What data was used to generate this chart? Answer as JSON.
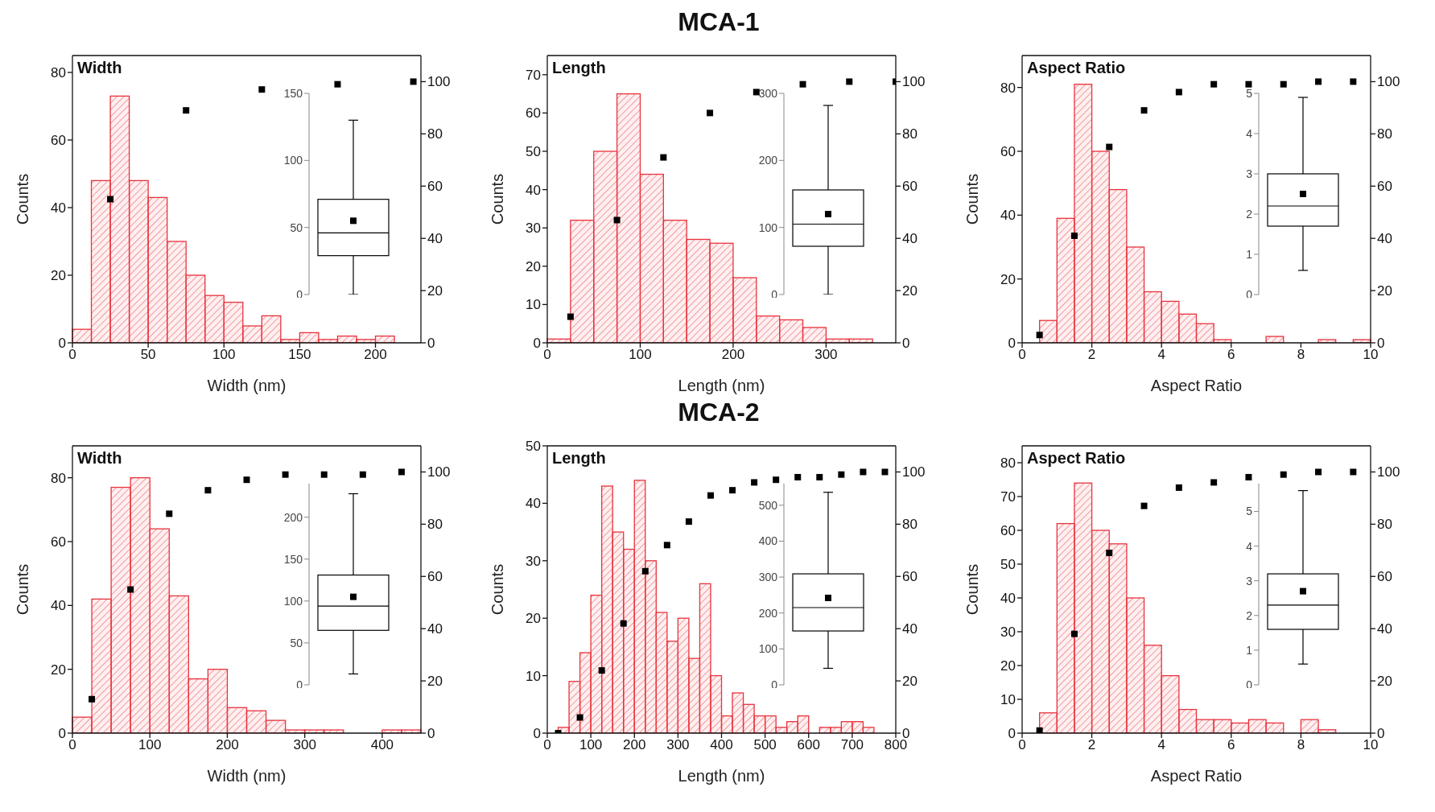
{
  "chart_data": [
    {
      "type": "histogram",
      "title": "Width",
      "xlabel": "Width (nm)",
      "ylabel": "Counts",
      "annotations": [
        "MCA-1"
      ],
      "xlim": [
        0,
        230
      ],
      "xticks": [
        0,
        50,
        100,
        150,
        200
      ],
      "ylim": [
        0,
        85
      ],
      "yticks": [
        0,
        20,
        40,
        60,
        80
      ],
      "y2lim": [
        0,
        110
      ],
      "y2ticks": [
        0,
        20,
        40,
        60,
        80,
        100
      ],
      "marker": "square",
      "series": [
        {
          "type": "histogram",
          "color": "#e8333c",
          "bins": [
            0,
            12.5,
            25,
            37.5,
            50,
            62.5,
            75,
            87.5,
            100,
            112.5,
            125,
            137.5,
            150,
            162.5,
            175,
            187.5,
            200,
            212.5
          ],
          "values": [
            4,
            48,
            73,
            48,
            43,
            30,
            20,
            14,
            12,
            5,
            8,
            1,
            3,
            1,
            2,
            1,
            2
          ]
        },
        {
          "type": "scatter",
          "axis": "y2",
          "color": "#000000",
          "x": [
            25,
            75,
            125,
            175,
            225
          ],
          "values": [
            55,
            89,
            97,
            99,
            100
          ]
        }
      ]
    },
    {
      "type": "box",
      "categories": [
        null
      ],
      "tick_labels": "y",
      "color": "#000000",
      "marker": "square",
      "ylim": [
        0,
        150
      ],
      "yticks": [
        0,
        50,
        100,
        150
      ],
      "boxes": [
        {
          "low": 0,
          "q1": 29,
          "median": 46,
          "q3": 71,
          "high": 130,
          "mean": 55
        }
      ]
    },
    {
      "type": "histogram",
      "title": "Length",
      "xlabel": "Length (nm)",
      "ylabel": "Counts",
      "xlim": [
        0,
        375
      ],
      "xticks": [
        0,
        100,
        200,
        300
      ],
      "ylim": [
        0,
        75
      ],
      "yticks": [
        0,
        10,
        20,
        30,
        40,
        50,
        60,
        70
      ],
      "y2lim": [
        0,
        110
      ],
      "y2ticks": [
        0,
        20,
        40,
        60,
        80,
        100
      ],
      "marker": "square",
      "series": [
        {
          "type": "histogram",
          "color": "#e8333c",
          "bins": [
            0,
            25,
            50,
            75,
            100,
            125,
            150,
            175,
            200,
            225,
            250,
            275,
            300,
            325,
            350
          ],
          "values": [
            1,
            32,
            50,
            65,
            44,
            32,
            27,
            26,
            17,
            7,
            6,
            4,
            1,
            1
          ]
        },
        {
          "type": "scatter",
          "axis": "y2",
          "color": "#000000",
          "x": [
            25,
            75,
            125,
            175,
            225,
            275,
            325,
            375
          ],
          "values": [
            10,
            47,
            71,
            88,
            96,
            99,
            100,
            100
          ]
        }
      ]
    },
    {
      "type": "box",
      "categories": [
        null
      ],
      "tick_labels": "y",
      "color": "#000000",
      "marker": "square",
      "ylim": [
        0,
        300
      ],
      "yticks": [
        0,
        100,
        200,
        300
      ],
      "boxes": [
        {
          "low": 0,
          "q1": 72,
          "median": 105,
          "q3": 156,
          "high": 282,
          "mean": 120
        }
      ]
    },
    {
      "type": "histogram",
      "title": "Aspect Ratio",
      "xlabel": "Aspect Ratio",
      "ylabel": "Counts",
      "xlim": [
        0,
        10
      ],
      "xticks": [
        0,
        2,
        4,
        6,
        8,
        10
      ],
      "ylim": [
        0,
        90
      ],
      "yticks": [
        0,
        20,
        40,
        60,
        80
      ],
      "y2lim": [
        0,
        110
      ],
      "y2ticks": [
        0,
        20,
        40,
        60,
        80,
        100
      ],
      "marker": "square",
      "series": [
        {
          "type": "histogram",
          "color": "#e8333c",
          "bins": [
            0.5,
            1,
            1.5,
            2,
            2.5,
            3,
            3.5,
            4,
            4.5,
            5,
            5.5,
            6,
            6.5,
            7,
            7.5,
            8,
            8.5,
            9,
            9.5,
            10
          ],
          "values": [
            7,
            39,
            81,
            60,
            48,
            30,
            16,
            13,
            9,
            6,
            1,
            0,
            0,
            2,
            0,
            0,
            1,
            0,
            1
          ]
        },
        {
          "type": "scatter",
          "axis": "y2",
          "color": "#000000",
          "x": [
            0.5,
            1.5,
            2.5,
            3.5,
            4.5,
            5.5,
            6.5,
            7.5,
            8.5,
            9.5
          ],
          "values": [
            3,
            41,
            75,
            89,
            96,
            99,
            99,
            99,
            100,
            100
          ]
        }
      ]
    },
    {
      "type": "box",
      "categories": [
        null
      ],
      "tick_labels": "y",
      "color": "#000000",
      "marker": "square",
      "ylim": [
        0,
        5
      ],
      "yticks": [
        0,
        1,
        2,
        3,
        4,
        5
      ],
      "boxes": [
        {
          "low": 0.6,
          "q1": 1.7,
          "median": 2.2,
          "q3": 3.0,
          "high": 4.9,
          "mean": 2.5
        }
      ]
    },
    {
      "type": "histogram",
      "title": "Width",
      "xlabel": "Width (nm)",
      "ylabel": "Counts",
      "annotations": [
        "MCA-2"
      ],
      "xlim": [
        0,
        450
      ],
      "xticks": [
        0,
        100,
        200,
        300,
        400
      ],
      "ylim": [
        0,
        90
      ],
      "yticks": [
        0,
        20,
        40,
        60,
        80
      ],
      "y2lim": [
        0,
        110
      ],
      "y2ticks": [
        0,
        20,
        40,
        60,
        80,
        100
      ],
      "marker": "square",
      "series": [
        {
          "type": "histogram",
          "color": "#e8333c",
          "bins": [
            0,
            25,
            50,
            75,
            100,
            125,
            150,
            175,
            200,
            225,
            250,
            275,
            300,
            325,
            350,
            375,
            400,
            425,
            450
          ],
          "values": [
            5,
            42,
            77,
            80,
            64,
            43,
            17,
            20,
            8,
            7,
            4,
            1,
            1,
            1,
            0,
            0,
            1,
            1
          ]
        },
        {
          "type": "scatter",
          "axis": "y2",
          "color": "#000000",
          "x": [
            25,
            75,
            125,
            175,
            225,
            275,
            325,
            375,
            425
          ],
          "values": [
            13,
            55,
            84,
            93,
            97,
            99,
            99,
            99,
            100
          ]
        }
      ]
    },
    {
      "type": "box",
      "categories": [
        null
      ],
      "tick_labels": "y",
      "color": "#000000",
      "marker": "square",
      "ylim": [
        0,
        240
      ],
      "yticks": [
        0,
        50,
        100,
        150,
        200
      ],
      "boxes": [
        {
          "low": 13,
          "q1": 65,
          "median": 94,
          "q3": 131,
          "high": 228,
          "mean": 105
        }
      ]
    },
    {
      "type": "histogram",
      "title": "Length",
      "xlabel": "Length (nm)",
      "ylabel": "Counts",
      "xlim": [
        0,
        800
      ],
      "xticks": [
        0,
        100,
        200,
        300,
        400,
        500,
        600,
        700,
        800
      ],
      "ylim": [
        0,
        50
      ],
      "yticks": [
        0,
        10,
        20,
        30,
        40,
        50
      ],
      "y2lim": [
        0,
        110
      ],
      "y2ticks": [
        0,
        20,
        40,
        60,
        80,
        100
      ],
      "marker": "square",
      "series": [
        {
          "type": "histogram",
          "color": "#e8333c",
          "bins": [
            25,
            50,
            75,
            100,
            125,
            150,
            175,
            200,
            225,
            250,
            275,
            300,
            325,
            350,
            375,
            400,
            425,
            450,
            475,
            500,
            525,
            550,
            575,
            600,
            625,
            650,
            675,
            700,
            725,
            750
          ],
          "values": [
            1,
            9,
            14,
            24,
            43,
            35,
            32,
            44,
            30,
            21,
            16,
            20,
            13,
            26,
            10,
            3,
            7,
            5,
            3,
            3,
            1,
            2,
            3,
            0,
            1,
            1,
            2,
            2,
            1
          ]
        },
        {
          "type": "scatter",
          "axis": "y2",
          "color": "#000000",
          "x": [
            25,
            75,
            125,
            175,
            225,
            275,
            325,
            375,
            425,
            475,
            525,
            575,
            625,
            675,
            725,
            775
          ],
          "values": [
            0,
            6,
            24,
            42,
            62,
            72,
            81,
            91,
            93,
            96,
            97,
            98,
            98,
            99,
            100,
            100
          ]
        }
      ]
    },
    {
      "type": "box",
      "categories": [
        null
      ],
      "tick_labels": "y",
      "color": "#000000",
      "marker": "square",
      "ylim": [
        0,
        560
      ],
      "yticks": [
        0,
        100,
        200,
        300,
        400,
        500
      ],
      "boxes": [
        {
          "low": 46,
          "q1": 150,
          "median": 215,
          "q3": 309,
          "high": 536,
          "mean": 242
        }
      ]
    },
    {
      "type": "histogram",
      "title": "Aspect Ratio",
      "xlabel": "Aspect Ratio",
      "ylabel": "Counts",
      "xlim": [
        0,
        10
      ],
      "xticks": [
        0,
        2,
        4,
        6,
        8,
        10
      ],
      "ylim": [
        0,
        85
      ],
      "yticks": [
        0,
        10,
        20,
        30,
        40,
        50,
        60,
        70,
        80
      ],
      "y2lim": [
        0,
        110
      ],
      "y2ticks": [
        0,
        20,
        40,
        60,
        80,
        100
      ],
      "marker": "square",
      "series": [
        {
          "type": "histogram",
          "color": "#e8333c",
          "bins": [
            0.5,
            1,
            1.5,
            2,
            2.5,
            3,
            3.5,
            4,
            4.5,
            5,
            5.5,
            6,
            6.5,
            7,
            7.5,
            8,
            8.5,
            9
          ],
          "values": [
            6,
            62,
            74,
            60,
            56,
            40,
            26,
            17,
            7,
            4,
            4,
            3,
            4,
            3,
            0,
            4,
            1
          ]
        },
        {
          "type": "scatter",
          "axis": "y2",
          "color": "#000000",
          "x": [
            0.5,
            1.5,
            2.5,
            3.5,
            4.5,
            5.5,
            6.5,
            7.5,
            8.5,
            9.5
          ],
          "values": [
            1,
            38,
            69,
            87,
            94,
            96,
            98,
            99,
            100,
            100
          ]
        }
      ]
    },
    {
      "type": "box",
      "categories": [
        null
      ],
      "tick_labels": "y",
      "color": "#000000",
      "marker": "square",
      "ylim": [
        0,
        5.8
      ],
      "yticks": [
        0,
        1,
        2,
        3,
        4,
        5
      ],
      "boxes": [
        {
          "low": 0.6,
          "q1": 1.6,
          "median": 2.3,
          "q3": 3.2,
          "high": 5.6,
          "mean": 2.7
        }
      ]
    }
  ]
}
